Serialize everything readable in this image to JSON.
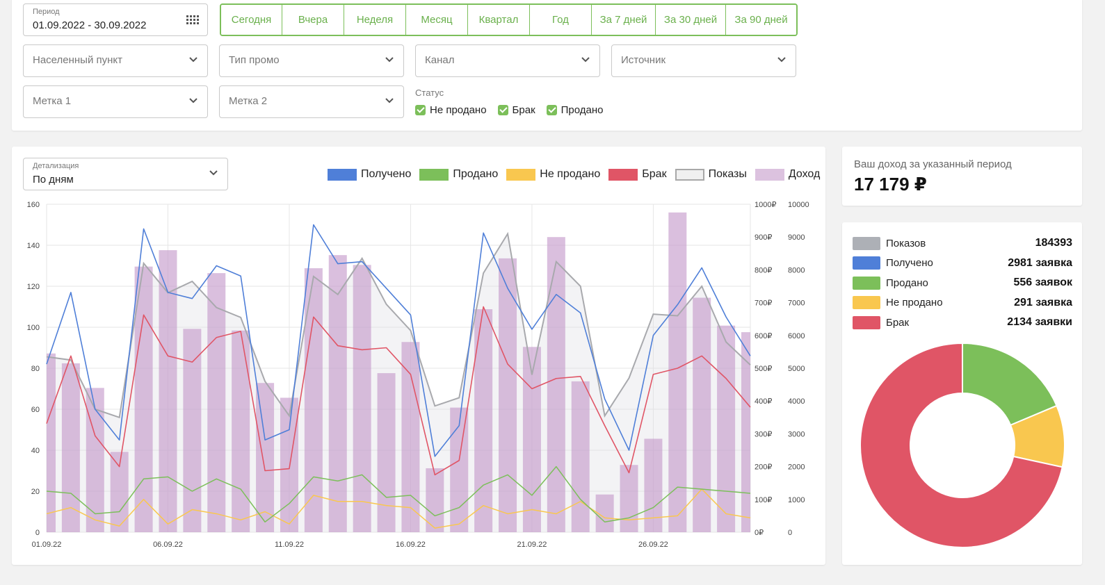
{
  "filters": {
    "period": {
      "label": "Период",
      "value": "01.09.2022 - 30.09.2022",
      "icon": "calendar-grid-icon"
    },
    "period_buttons": [
      "Сегодня",
      "Вчера",
      "Неделя",
      "Месяц",
      "Квартал",
      "Год",
      "За 7 дней",
      "За 30 дней",
      "За 90 дней"
    ],
    "dropdowns_row1": [
      "Населенный пункт",
      "Тип промо",
      "Канал",
      "Источник"
    ],
    "dropdowns_row2": [
      "Метка 1",
      "Метка 2"
    ],
    "status": {
      "title": "Статус",
      "options": [
        "Не продано",
        "Брак",
        "Продано"
      ]
    }
  },
  "detail": {
    "label": "Детализация",
    "value": "По дням"
  },
  "legend": [
    {
      "name": "Получено",
      "color": "#4f7fd8"
    },
    {
      "name": "Продано",
      "color": "#7cbf5a"
    },
    {
      "name": "Не продано",
      "color": "#f9c74f"
    },
    {
      "name": "Брак",
      "color": "#e05566"
    },
    {
      "name": "Показы",
      "color": "#f0f0f0"
    },
    {
      "name": "Доход",
      "color": "#dcc2df"
    }
  ],
  "income": {
    "title": "Ваш доход за указанный период",
    "value": "17 179 ₽"
  },
  "stats": [
    {
      "name": "Показов",
      "value": "184393",
      "color": "#adb0b6"
    },
    {
      "name": "Получено",
      "value": "2981 заявка",
      "color": "#4f7fd8"
    },
    {
      "name": "Продано",
      "value": "556 заявок",
      "color": "#7cbf5a"
    },
    {
      "name": "Не продано",
      "value": "291 заявка",
      "color": "#f9c74f"
    },
    {
      "name": "Брак",
      "value": "2134 заявки",
      "color": "#e05566"
    }
  ],
  "chart_data": [
    {
      "type": "bar",
      "x": [
        "01.09.22",
        "02.09.22",
        "03.09.22",
        "04.09.22",
        "05.09.22",
        "06.09.22",
        "07.09.22",
        "08.09.22",
        "09.09.22",
        "10.09.22",
        "11.09.22",
        "12.09.22",
        "13.09.22",
        "14.09.22",
        "15.09.22",
        "16.09.22",
        "17.09.22",
        "18.09.22",
        "19.09.22",
        "20.09.22",
        "21.09.22",
        "22.09.22",
        "23.09.22",
        "24.09.22",
        "25.09.22",
        "26.09.22",
        "27.09.22",
        "28.09.22",
        "29.09.22",
        "30.09.22"
      ],
      "x_ticks": [
        "01.09.22",
        "06.09.22",
        "11.09.22",
        "16.09.22",
        "21.09.22",
        "26.09.22"
      ],
      "y_left": {
        "ylim": [
          0,
          160
        ],
        "ticks": [
          "0",
          "20",
          "40",
          "60",
          "80",
          "100",
          "120",
          "140",
          "160"
        ]
      },
      "y_right_income": {
        "ylim": [
          0,
          1000
        ],
        "ticks": [
          "0₽",
          "100₽",
          "200₽",
          "300₽",
          "400₽",
          "500₽",
          "600₽",
          "700₽",
          "800₽",
          "900₽",
          "1000₽"
        ]
      },
      "y_right_views": {
        "ylim": [
          0,
          10000
        ],
        "ticks": [
          "0",
          "1000",
          "2000",
          "3000",
          "4000",
          "5000",
          "6000",
          "7000",
          "8000",
          "9000",
          "10000"
        ]
      },
      "series": [
        {
          "name": "Доход",
          "type": "bar",
          "axis": "income",
          "values": [
            545,
            515,
            440,
            245,
            810,
            860,
            620,
            790,
            615,
            455,
            410,
            805,
            845,
            815,
            485,
            580,
            195,
            380,
            680,
            835,
            565,
            900,
            460,
            115,
            205,
            285,
            975,
            715,
            630,
            610
          ]
        },
        {
          "name": "Показы",
          "type": "area",
          "axis": "views",
          "values": [
            5350,
            5250,
            3750,
            3500,
            8200,
            7300,
            7650,
            6850,
            6550,
            4600,
            3550,
            7800,
            7250,
            8350,
            6950,
            6150,
            3850,
            4100,
            7900,
            9100,
            4800,
            8250,
            7500,
            3550,
            4700,
            6650,
            6600,
            7500,
            5800,
            5100
          ]
        },
        {
          "name": "Получено",
          "type": "line",
          "axis": "left",
          "values": [
            82,
            117,
            60,
            45,
            148,
            117,
            114,
            130,
            125,
            45,
            50,
            150,
            131,
            132,
            119,
            106,
            37,
            52,
            146,
            119,
            99,
            116,
            107,
            65,
            40,
            96,
            111,
            129,
            105,
            86
          ]
        },
        {
          "name": "Брак",
          "type": "line",
          "axis": "left",
          "values": [
            53,
            86,
            47,
            32,
            106,
            86,
            83,
            95,
            98,
            30,
            31,
            105,
            91,
            89,
            90,
            77,
            28,
            35,
            110,
            82,
            70,
            75,
            76,
            52,
            29,
            77,
            80,
            86,
            75,
            61
          ]
        },
        {
          "name": "Продано",
          "type": "line",
          "axis": "left",
          "values": [
            20,
            19,
            9,
            10,
            26,
            27,
            20,
            26,
            21,
            5,
            14,
            27,
            25,
            28,
            17,
            18,
            8,
            12,
            23,
            28,
            18,
            32,
            16,
            5,
            7,
            12,
            22,
            21,
            20,
            19
          ]
        },
        {
          "name": "Не продано",
          "type": "line",
          "axis": "left",
          "values": [
            9,
            12,
            6,
            3,
            16,
            4,
            11,
            9,
            6,
            10,
            4,
            18,
            15,
            15,
            13,
            12,
            2,
            4,
            13,
            9,
            11,
            9,
            15,
            7,
            6,
            7,
            8,
            21,
            9,
            7
          ]
        }
      ]
    },
    {
      "type": "pie",
      "categories": [
        "Брак",
        "Продано",
        "Не продано"
      ],
      "values": [
        2134,
        556,
        291
      ],
      "colors": [
        "#e05566",
        "#7cbf5a",
        "#f9c74f"
      ]
    }
  ]
}
